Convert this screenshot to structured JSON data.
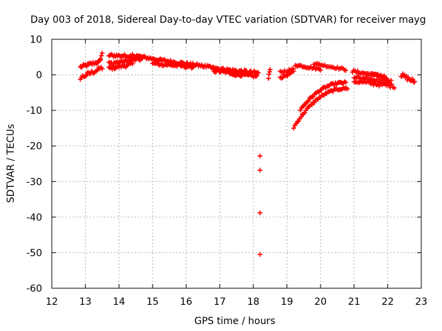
{
  "chart_data": {
    "type": "scatter",
    "title": "Day 003 of 2018, Sidereal Day-to-day VTEC variation (SDTVAR) for receiver mayg",
    "xlabel": "GPS time / hours",
    "ylabel": "SDTVAR / TECUs",
    "xlim": [
      12,
      23
    ],
    "ylim": [
      -60,
      10
    ],
    "xticks": [
      "12",
      "13",
      "14",
      "15",
      "16",
      "17",
      "18",
      "19",
      "20",
      "21",
      "22",
      "23"
    ],
    "yticks": [
      "10",
      "0",
      "-10",
      "-20",
      "-30",
      "-40",
      "-50",
      "-60"
    ],
    "grid": true,
    "marker_color": "#ff0000",
    "marker": "plus",
    "segments": [
      {
        "x0": 12.85,
        "x1": 13.45,
        "y0": 2.2,
        "y1": 3.8,
        "n": 20,
        "wobble": 0.5
      },
      {
        "x0": 12.85,
        "x1": 13.5,
        "y0": -0.8,
        "y1": 2.0,
        "n": 20,
        "wobble": 0.6
      },
      {
        "x0": 13.45,
        "x1": 13.5,
        "y0": 4.5,
        "y1": 6.0,
        "n": 3,
        "wobble": 0.2
      },
      {
        "x0": 13.7,
        "x1": 14.6,
        "y0": 5.5,
        "y1": 5.2,
        "n": 28,
        "wobble": 0.4
      },
      {
        "x0": 13.7,
        "x1": 14.7,
        "y0": 3.2,
        "y1": 4.5,
        "n": 28,
        "wobble": 0.5
      },
      {
        "x0": 13.7,
        "x1": 14.4,
        "y0": 1.8,
        "y1": 3.0,
        "n": 22,
        "wobble": 0.5
      },
      {
        "x0": 14.4,
        "x1": 15.2,
        "y0": 5.5,
        "y1": 4.2,
        "n": 24,
        "wobble": 0.4
      },
      {
        "x0": 15.2,
        "x1": 16.5,
        "y0": 4.2,
        "y1": 2.5,
        "n": 40,
        "wobble": 0.4
      },
      {
        "x0": 15.0,
        "x1": 16.2,
        "y0": 3.2,
        "y1": 2.2,
        "n": 34,
        "wobble": 0.4
      },
      {
        "x0": 16.5,
        "x1": 17.3,
        "y0": 2.5,
        "y1": 1.0,
        "n": 26,
        "wobble": 0.4
      },
      {
        "x0": 16.8,
        "x1": 17.6,
        "y0": 1.2,
        "y1": 0.3,
        "n": 26,
        "wobble": 0.4
      },
      {
        "x0": 17.1,
        "x1": 18.15,
        "y0": 1.5,
        "y1": 0.5,
        "n": 34,
        "wobble": 0.5
      },
      {
        "x0": 17.3,
        "x1": 18.1,
        "y0": 0.3,
        "y1": -0.4,
        "n": 26,
        "wobble": 0.4
      },
      {
        "x0": 18.45,
        "x1": 18.5,
        "y0": -1.0,
        "y1": 1.8,
        "n": 4,
        "wobble": 0.3
      },
      {
        "x0": 18.8,
        "x1": 19.2,
        "y0": -0.8,
        "y1": 0.8,
        "n": 12,
        "wobble": 0.4
      },
      {
        "x0": 18.8,
        "x1": 19.2,
        "y0": 0.8,
        "y1": 1.5,
        "n": 10,
        "wobble": 0.4
      },
      {
        "x0": 19.25,
        "x1": 20.0,
        "y0": 2.8,
        "y1": 1.6,
        "n": 22,
        "wobble": 0.3
      },
      {
        "x0": 19.8,
        "x1": 20.75,
        "y0": 3.2,
        "y1": 1.5,
        "n": 24,
        "wobble": 0.3
      },
      {
        "x0": 20.95,
        "x1": 21.9,
        "y0": 1.0,
        "y1": -0.5,
        "n": 26,
        "wobble": 0.4
      },
      {
        "x0": 21.0,
        "x1": 22.1,
        "y0": -0.8,
        "y1": -2.0,
        "n": 30,
        "wobble": 0.5
      },
      {
        "x0": 21.0,
        "x1": 22.2,
        "y0": -1.8,
        "y1": -3.2,
        "n": 30,
        "wobble": 0.5
      },
      {
        "x0": 21.5,
        "x1": 22.0,
        "y0": 0.5,
        "y1": -1.0,
        "n": 16,
        "wobble": 0.5
      },
      {
        "x0": 22.4,
        "x1": 22.8,
        "y0": 0.0,
        "y1": -2.0,
        "n": 16,
        "wobble": 0.6
      }
    ],
    "curves": [
      {
        "x0": 19.2,
        "x1": 20.8,
        "y0": -14.8,
        "y1": -3.8,
        "n": 45
      },
      {
        "x0": 19.4,
        "x1": 20.75,
        "y0": -9.8,
        "y1": -2.2,
        "n": 40
      }
    ],
    "points": [
      {
        "x": 18.2,
        "y": -22.8
      },
      {
        "x": 18.2,
        "y": -26.8
      },
      {
        "x": 18.2,
        "y": -38.8
      },
      {
        "x": 18.2,
        "y": -50.5
      }
    ]
  }
}
